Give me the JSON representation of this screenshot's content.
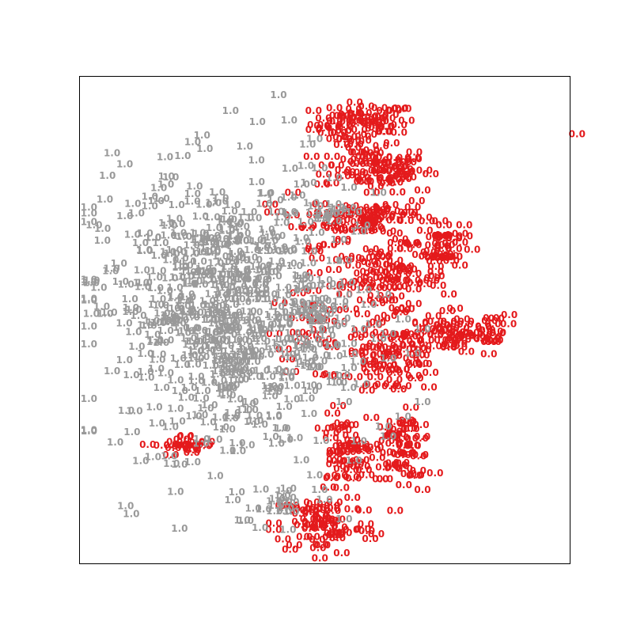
{
  "chart_data": {
    "type": "scatter",
    "title": "",
    "xlabel": "",
    "ylabel": "",
    "xticks": [],
    "yticks": [],
    "xlim": [
      0,
      100
    ],
    "ylim": [
      0,
      100
    ],
    "grid": false,
    "legend": "none",
    "marker": "text",
    "colors": {
      "0.0": "#e41a1c",
      "1.0": "#999999"
    },
    "series": [
      {
        "label_text": "0.0",
        "color": "#e41a1c",
        "clusters": [
          {
            "cx": 58,
            "cy": 90,
            "rx": 9,
            "ry": 4,
            "n": 70
          },
          {
            "cx": 60,
            "cy": 81,
            "rx": 10,
            "ry": 4,
            "n": 70
          },
          {
            "cx": 60,
            "cy": 71,
            "rx": 11,
            "ry": 4,
            "n": 70
          },
          {
            "cx": 74,
            "cy": 65,
            "rx": 4,
            "ry": 4.5,
            "n": 40
          },
          {
            "cx": 63,
            "cy": 58,
            "rx": 10,
            "ry": 6,
            "n": 80
          },
          {
            "cx": 78,
            "cy": 47,
            "rx": 11,
            "ry": 4.5,
            "n": 70
          },
          {
            "cx": 64,
            "cy": 42,
            "rx": 9,
            "ry": 7,
            "n": 80
          },
          {
            "cx": 66,
            "cy": 24,
            "rx": 5,
            "ry": 6,
            "n": 55
          },
          {
            "cx": 54,
            "cy": 22,
            "rx": 5,
            "ry": 7,
            "n": 55
          },
          {
            "cx": 50,
            "cy": 8,
            "rx": 9,
            "ry": 6,
            "n": 70
          },
          {
            "cx": 22,
            "cy": 24,
            "rx": 5,
            "ry": 2,
            "n": 25
          },
          {
            "cx": 48,
            "cy": 60,
            "rx": 6,
            "ry": 20,
            "n": 45
          }
        ],
        "outliers": [
          [
            101.5,
            88
          ],
          [
            70,
            15
          ],
          [
            70,
            76.5
          ],
          [
            68,
            73
          ]
        ]
      },
      {
        "label_text": "1.0",
        "color": "#999999",
        "clusters": [
          {
            "cx": 26,
            "cy": 52,
            "rx": 22,
            "ry": 26,
            "n": 420
          },
          {
            "cx": 34,
            "cy": 48,
            "rx": 14,
            "ry": 30,
            "n": 200
          },
          {
            "cx": 48,
            "cy": 50,
            "rx": 5,
            "ry": 8,
            "n": 40
          },
          {
            "cx": 50,
            "cy": 72,
            "rx": 4,
            "ry": 2,
            "n": 15
          },
          {
            "cx": 42,
            "cy": 13,
            "rx": 3,
            "ry": 3,
            "n": 15
          }
        ],
        "scattered_labels": [
          [
            48,
            87
          ],
          [
            49,
            81
          ],
          [
            52,
            79
          ],
          [
            55,
            77
          ],
          [
            61,
            76
          ],
          [
            56,
            72
          ],
          [
            57,
            68
          ],
          [
            52,
            62
          ],
          [
            54,
            62
          ],
          [
            50,
            58
          ],
          [
            58,
            56
          ],
          [
            54,
            55
          ],
          [
            59,
            53
          ],
          [
            51,
            52
          ],
          [
            62,
            55
          ],
          [
            60,
            49
          ],
          [
            53,
            49
          ],
          [
            57,
            48
          ],
          [
            66,
            50
          ],
          [
            61,
            46
          ],
          [
            63,
            47
          ],
          [
            55,
            45
          ],
          [
            70,
            48
          ],
          [
            63,
            42
          ],
          [
            55,
            40
          ],
          [
            53,
            37
          ],
          [
            68,
            43
          ],
          [
            70,
            33
          ],
          [
            62,
            28
          ],
          [
            66,
            30
          ],
          [
            54,
            33
          ],
          [
            57,
            25
          ],
          [
            63,
            26
          ],
          [
            48,
            18
          ],
          [
            50,
            13
          ],
          [
            54,
            9
          ],
          [
            49,
            15
          ],
          [
            56,
            21
          ]
        ]
      }
    ]
  }
}
